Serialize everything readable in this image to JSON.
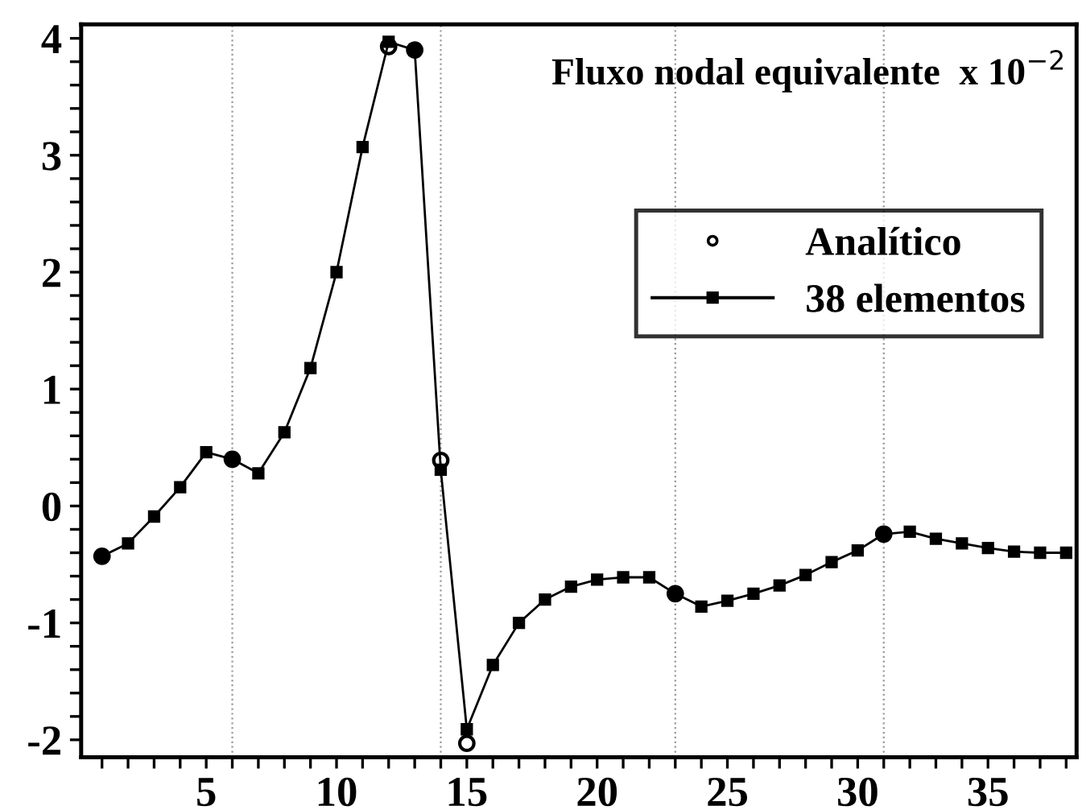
{
  "chart_data": {
    "type": "line",
    "annotations": [
      "Fluxo nodal equivalente  x 10$^{−2}$"
    ],
    "x": [
      1,
      2,
      3,
      4,
      5,
      6,
      7,
      8,
      9,
      10,
      11,
      12,
      13,
      14,
      15,
      16,
      17,
      18,
      19,
      20,
      21,
      22,
      23,
      24,
      25,
      26,
      27,
      28,
      29,
      30,
      31,
      32,
      33,
      34,
      35,
      36,
      37,
      38
    ],
    "series": [
      {
        "name": "Analítico",
        "type": "scatter",
        "marker": "circle",
        "color": "#000000",
        "x": [
          1,
          6,
          12,
          13,
          14,
          15,
          23,
          31
        ],
        "values": [
          -0.43,
          0.4,
          3.93,
          3.9,
          0.39,
          -2.03,
          -0.75,
          -0.24
        ]
      },
      {
        "name": "38 elementos",
        "marker": "square",
        "color": "#000000",
        "values": [
          -0.43,
          -0.32,
          -0.09,
          0.16,
          0.46,
          0.4,
          0.28,
          0.63,
          1.18,
          2.0,
          3.07,
          3.97,
          3.9,
          0.31,
          -1.91,
          -1.36,
          -1.0,
          -0.8,
          -0.69,
          -0.63,
          -0.61,
          -0.61,
          -0.75,
          -0.86,
          -0.81,
          -0.75,
          -0.68,
          -0.59,
          -0.48,
          -0.38,
          -0.24,
          -0.22,
          -0.28,
          -0.32,
          -0.36,
          -0.39,
          -0.4,
          -0.4
        ]
      }
    ],
    "xlim": [
      0.2,
      38.4
    ],
    "ylim": [
      -2.15,
      4.12
    ],
    "xticks": [
      {
        "value": 1,
        "label": null
      },
      {
        "value": 2,
        "label": null
      },
      {
        "value": 3,
        "label": null
      },
      {
        "value": 4,
        "label": null
      },
      5,
      {
        "value": 6,
        "label": null
      },
      {
        "value": 7,
        "label": null
      },
      {
        "value": 8,
        "label": null
      },
      {
        "value": 9,
        "label": null
      },
      10,
      {
        "value": 11,
        "label": null
      },
      {
        "value": 12,
        "label": null
      },
      {
        "value": 13,
        "label": null
      },
      {
        "value": 14,
        "label": null
      },
      15,
      {
        "value": 16,
        "label": null
      },
      {
        "value": 17,
        "label": null
      },
      {
        "value": 18,
        "label": null
      },
      {
        "value": 19,
        "label": null
      },
      20,
      {
        "value": 21,
        "label": null
      },
      {
        "value": 22,
        "label": null
      },
      {
        "value": 23,
        "label": null
      },
      {
        "value": 24,
        "label": null
      },
      25,
      {
        "value": 26,
        "label": null
      },
      {
        "value": 27,
        "label": null
      },
      {
        "value": 28,
        "label": null
      },
      {
        "value": 29,
        "label": null
      },
      30,
      {
        "value": 31,
        "label": null
      },
      {
        "value": 32,
        "label": null
      },
      {
        "value": 33,
        "label": null
      },
      {
        "value": 34,
        "label": null
      },
      35,
      {
        "value": 36,
        "label": null
      },
      {
        "value": 37,
        "label": null
      },
      {
        "value": 38,
        "label": null
      }
    ],
    "yticks": [
      {
        "value": -2,
        "label": "-2"
      },
      {
        "value": -1.8,
        "label": null
      },
      {
        "value": -1.6,
        "label": null
      },
      {
        "value": -1.4,
        "label": null
      },
      {
        "value": -1.2,
        "label": null
      },
      {
        "value": -1,
        "label": "-1"
      },
      {
        "value": -0.8,
        "label": null
      },
      {
        "value": -0.6,
        "label": null
      },
      {
        "value": -0.4,
        "label": null
      },
      {
        "value": -0.2,
        "label": null
      },
      0,
      {
        "value": 0.2,
        "label": null
      },
      {
        "value": 0.4,
        "label": null
      },
      {
        "value": 0.6,
        "label": null
      },
      {
        "value": 0.8,
        "label": null
      },
      1,
      {
        "value": 1.2,
        "label": null
      },
      {
        "value": 1.4,
        "label": null
      },
      {
        "value": 1.6,
        "label": null
      },
      {
        "value": 1.8,
        "label": null
      },
      2,
      {
        "value": 2.2,
        "label": null
      },
      {
        "value": 2.4,
        "label": null
      },
      {
        "value": 2.6,
        "label": null
      },
      {
        "value": 2.8,
        "label": null
      },
      3,
      {
        "value": 3.2,
        "label": null
      },
      {
        "value": 3.4,
        "label": null
      },
      {
        "value": 3.6,
        "label": null
      },
      {
        "value": 3.8,
        "label": null
      },
      4
    ],
    "ref_lines": [
      {
        "axis": "x",
        "value": 6,
        "line_style": "dotted",
        "color": "#999999"
      },
      {
        "axis": "x",
        "value": 14,
        "line_style": "dotted",
        "color": "#999999"
      },
      {
        "axis": "x",
        "value": 23,
        "line_style": "dotted",
        "color": "#999999"
      },
      {
        "axis": "x",
        "value": 31,
        "line_style": "dotted",
        "color": "#999999"
      }
    ],
    "legend": "right",
    "grid": false
  }
}
